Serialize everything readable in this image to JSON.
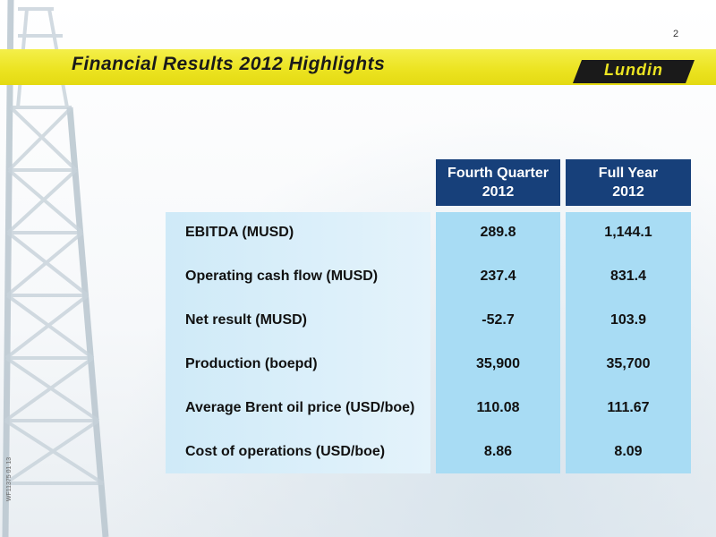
{
  "slide": {
    "page_number": "2",
    "title": "Financial Results 2012 Highlights",
    "logo_text": "Lundin",
    "side_code": "WF11375 01 13"
  },
  "table": {
    "columns": [
      {
        "line1": "Fourth Quarter",
        "line2": "2012"
      },
      {
        "line1": "Full Year",
        "line2": "2012"
      }
    ],
    "rows": [
      {
        "label": "EBITDA (MUSD)",
        "q4": "289.8",
        "fy": "1,144.1"
      },
      {
        "label": "Operating cash flow (MUSD)",
        "q4": "237.4",
        "fy": "831.4"
      },
      {
        "label": "Net result (MUSD)",
        "q4": "-52.7",
        "fy": "103.9"
      },
      {
        "label": "Production (boepd)",
        "q4": "35,900",
        "fy": "35,700"
      },
      {
        "label": "Average Brent oil price (USD/boe)",
        "q4": "110.08",
        "fy": "111.67"
      },
      {
        "label": "Cost of operations (USD/boe)",
        "q4": "8.86",
        "fy": "8.09"
      }
    ]
  },
  "colors": {
    "band_yellow": "#ece422",
    "header_blue": "#17407a",
    "value_cell_blue": "#a8dcf4",
    "label_cell_blue": "#d9eff9"
  }
}
